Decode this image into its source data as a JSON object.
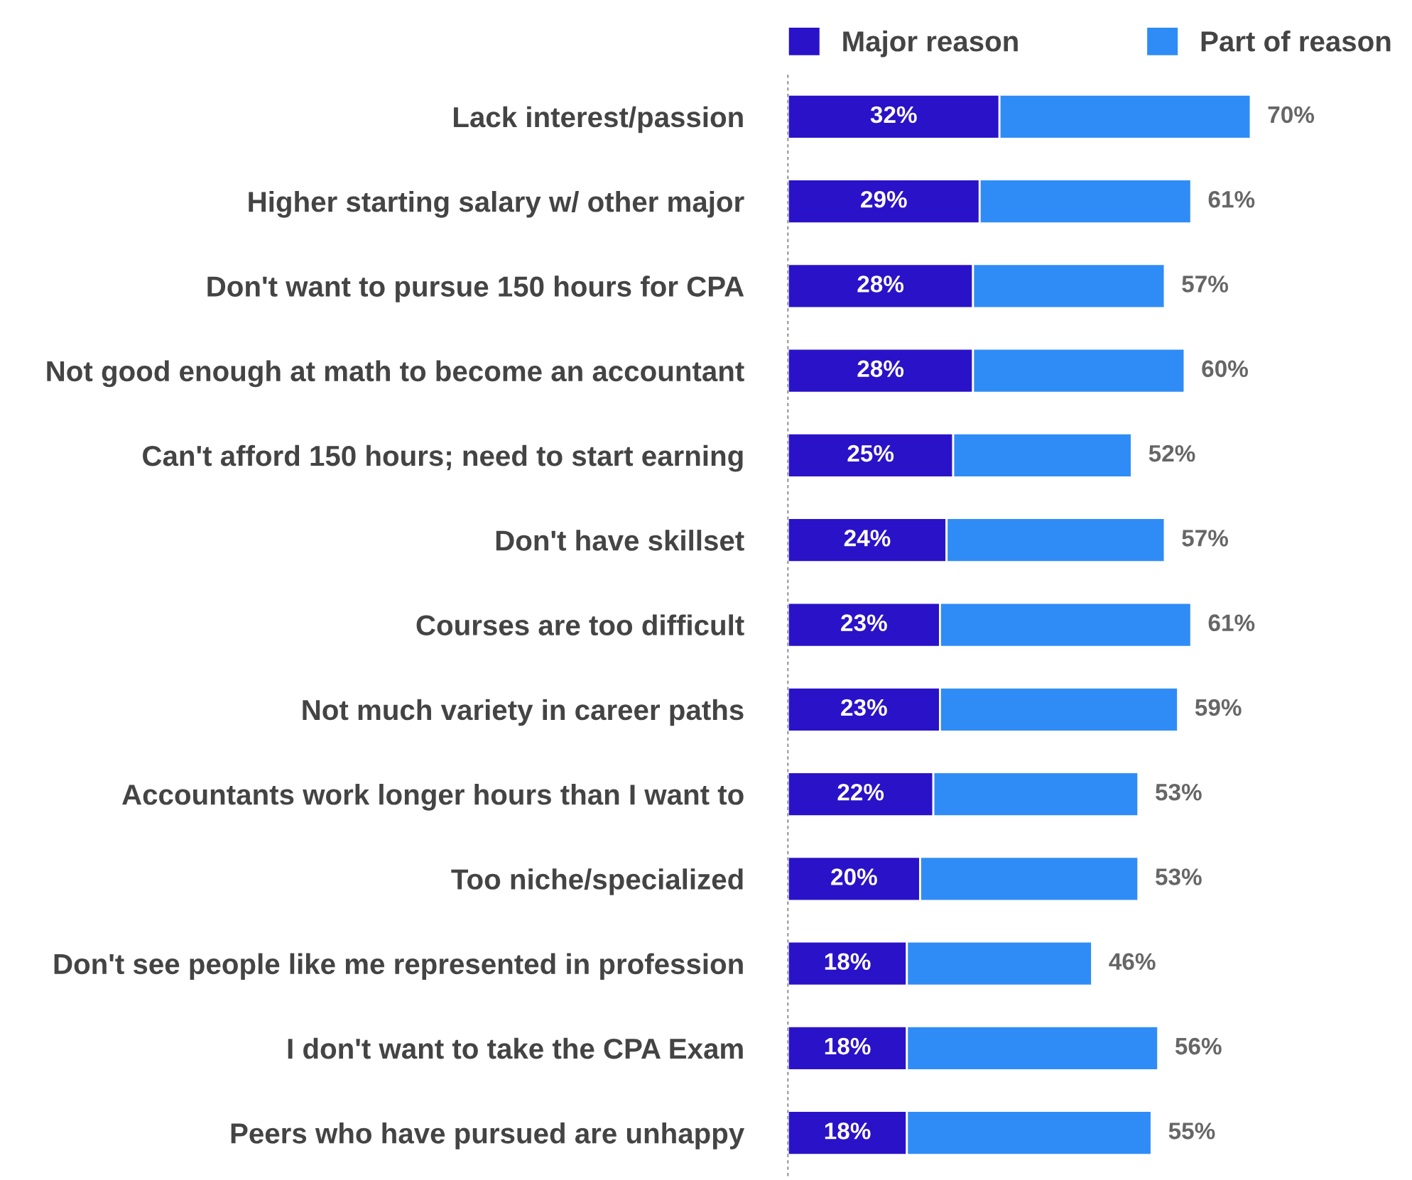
{
  "chart_data": {
    "type": "bar",
    "orientation": "horizontal",
    "stacked": true,
    "categories": [
      "Lack interest/passion",
      "Higher starting salary w/ other major",
      "Don't want to pursue 150 hours for CPA",
      "Not good enough at math to become an accountant",
      "Can't afford 150 hours; need to start earning",
      "Don't have skillset",
      "Courses are too difficult",
      "Not much variety in career paths",
      "Accountants work longer hours than I want to",
      "Too niche/specialized",
      "Don't see people like me represented in profession",
      "I don't want to take the CPA Exam",
      "Peers who have pursued are unhappy"
    ],
    "series": [
      {
        "name": "Major reason",
        "color": "#2a12c8",
        "values": [
          32,
          29,
          28,
          28,
          25,
          24,
          23,
          23,
          22,
          20,
          18,
          18,
          18
        ],
        "value_labels": [
          "32%",
          "29%",
          "28%",
          "28%",
          "25%",
          "24%",
          "23%",
          "23%",
          "22%",
          "20%",
          "18%",
          "18%",
          "18%"
        ]
      },
      {
        "name": "Part of reason",
        "color": "#2f8cf6",
        "values": [
          38,
          32,
          29,
          32,
          27,
          33,
          38,
          36,
          31,
          33,
          28,
          38,
          37
        ]
      }
    ],
    "totals": [
      "70%",
      "61%",
      "57%",
      "60%",
      "52%",
      "57%",
      "61%",
      "59%",
      "53%",
      "53%",
      "46%",
      "56%",
      "55%"
    ],
    "tick_labels": "y",
    "grid": false,
    "legend": "top right"
  }
}
